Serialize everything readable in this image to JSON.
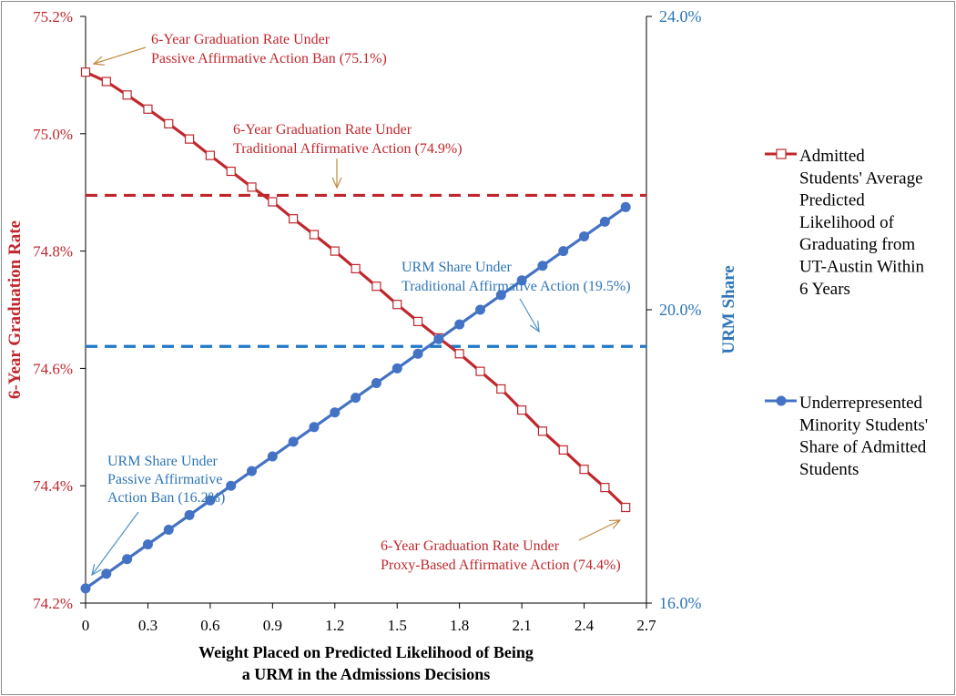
{
  "chart_data": {
    "type": "line",
    "xlabel": [
      "Weight Placed on Predicted Likelihood of Being",
      "a URM in the Admissions Decisions"
    ],
    "ylabel_left": "6-Year Graduation Rate",
    "ylabel_right": "URM Share",
    "x_ticks": [
      "0",
      "0.3",
      "0.6",
      "0.9",
      "1.2",
      "1.5",
      "1.8",
      "2.1",
      "2.4",
      "2.7"
    ],
    "y_left_ticks": [
      "74.2%",
      "74.4%",
      "74.6%",
      "74.8%",
      "75.0%",
      "75.2%"
    ],
    "y_right_ticks": [
      "16.0%",
      "20.0%",
      "24.0%"
    ],
    "xlim": [
      0,
      2.7
    ],
    "ylim_left": [
      74.2,
      75.2
    ],
    "ylim_right": [
      16.0,
      24.0
    ],
    "colors": {
      "red": "#c0272d",
      "blue": "#4472c4",
      "dash_blue": "#1f78c8",
      "label_blue": "#2e75b6"
    },
    "x": [
      0,
      0.1,
      0.2,
      0.3,
      0.4,
      0.5,
      0.6,
      0.7,
      0.8,
      0.9,
      1.0,
      1.1,
      1.2,
      1.3,
      1.4,
      1.5,
      1.6,
      1.7,
      1.8,
      1.9,
      2.0,
      2.1,
      2.2,
      2.3,
      2.4,
      2.5,
      2.6
    ],
    "series": [
      {
        "name": "Admitted Students' Average Predicted Likelihood of Graduating from UT-Austin Within 6 Years",
        "axis": "left",
        "marker": "square",
        "values": [
          75.105,
          75.089,
          75.066,
          75.042,
          75.017,
          74.991,
          74.963,
          74.936,
          74.909,
          74.884,
          74.855,
          74.828,
          74.8,
          74.77,
          74.74,
          74.709,
          74.68,
          74.652,
          74.625,
          74.595,
          74.565,
          74.529,
          74.493,
          74.461,
          74.428,
          74.397,
          74.363
        ]
      },
      {
        "name": "Underrepresented Minority Students' Share of Admitted Students",
        "axis": "right",
        "marker": "circle",
        "values": [
          16.2,
          16.4,
          16.6,
          16.8,
          17.0,
          17.2,
          17.4,
          17.6,
          17.8,
          18.0,
          18.2,
          18.4,
          18.6,
          18.8,
          19.0,
          19.2,
          19.4,
          19.6,
          19.8,
          20.0,
          20.2,
          20.4,
          20.6,
          20.8,
          21.0,
          21.2,
          21.4
        ]
      }
    ],
    "reference_lines": [
      {
        "name": "traditional-grad-rate",
        "axis": "left",
        "value": 74.895
      },
      {
        "name": "traditional-urm-share",
        "axis": "right",
        "value": 19.5
      }
    ],
    "legend": [
      {
        "lines": [
          "Admitted",
          "Students' Average",
          "Predicted",
          "Likelihood of",
          "Graduating from",
          "UT-Austin Within",
          "6 Years"
        ]
      },
      {
        "lines": [
          "Underrepresented",
          "Minority Students'",
          "Share of Admitted",
          "Students"
        ]
      }
    ],
    "annotations": [
      {
        "lines": [
          "6-Year Graduation Rate Under",
          "Passive Affirmative Action Ban (75.1%)"
        ]
      },
      {
        "lines": [
          "6-Year Graduation Rate Under",
          "Traditional  Affirmative Action (74.9%)"
        ]
      },
      {
        "lines": [
          "URM Share Under",
          "Traditional  Affirmative Action (19.5%)"
        ]
      },
      {
        "lines": [
          "URM Share Under",
          "Passive Affirmative",
          "Action Ban (16.2%)"
        ]
      },
      {
        "lines": [
          "6-Year Graduation Rate Under",
          "Proxy-Based Affirmative Action (74.4%)"
        ]
      }
    ]
  }
}
